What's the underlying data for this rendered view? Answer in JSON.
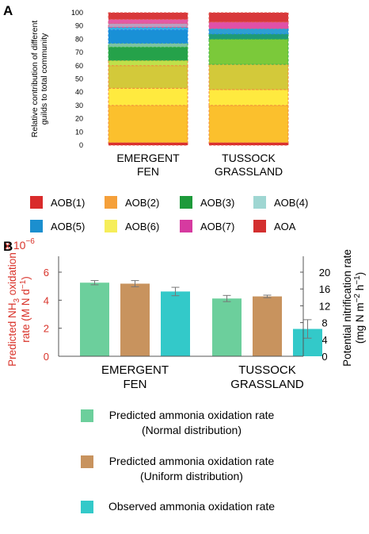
{
  "panels": {
    "a": "A",
    "b": "B"
  },
  "chart_data": [
    {
      "type": "bar",
      "stacked": true,
      "categories": [
        "EMERGENT FEN",
        "TUSSOCK GRASSLAND"
      ],
      "category_lines": [
        [
          "EMERGENT",
          "FEN"
        ],
        [
          "TUSSOCK",
          "GRASSLAND"
        ]
      ],
      "ylabel_lines": [
        "Relative contribution of different",
        "guilds to total community"
      ],
      "ylim": [
        0,
        100
      ],
      "yticks": [
        0,
        10,
        20,
        30,
        40,
        50,
        60,
        70,
        80,
        90,
        100
      ],
      "legend_position": "bottom",
      "legend": [
        {
          "label": "AOB(1)",
          "color": "#d92b2b"
        },
        {
          "label": "AOB(2)",
          "color": "#f5a03a"
        },
        {
          "label": "AOB(3)",
          "color": "#1d9a3a"
        },
        {
          "label": "AOB(4)",
          "color": "#9fd6d2"
        },
        {
          "label": "AOB(5)",
          "color": "#1b8fcf"
        },
        {
          "label": "AOB(6)",
          "color": "#f6ee5a"
        },
        {
          "label": "AOB(7)",
          "color": "#d63aa0"
        },
        {
          "label": "AOA",
          "color": "#d32f2f"
        }
      ],
      "stacks": [
        [
          {
            "from": 0,
            "to": 2,
            "color": "#d92b2b",
            "border": "#e05a50"
          },
          {
            "from": 2,
            "to": 30,
            "color": "#fbc02d",
            "border": "#f08a3a"
          },
          {
            "from": 30,
            "to": 43,
            "color": "#ffea3f",
            "border": "#f08a3a"
          },
          {
            "from": 43,
            "to": 60,
            "color": "#d3c93a",
            "border": "#f08a3a"
          },
          {
            "from": 60,
            "to": 64,
            "color": "#bfe04a",
            "border": "#f08a3a"
          },
          {
            "from": 64,
            "to": 74,
            "color": "#25a24a",
            "border": "#3cb44b"
          },
          {
            "from": 74,
            "to": 77,
            "color": "#7ec3a0",
            "border": "#3cb44b"
          },
          {
            "from": 77,
            "to": 87,
            "color": "#1990d6",
            "border": "#1e88e5"
          },
          {
            "from": 87,
            "to": 89,
            "color": "#36b0e0",
            "border": "#1e88e5"
          },
          {
            "from": 89,
            "to": 92,
            "color": "#b8a0c0",
            "border": "#e05a8a"
          },
          {
            "from": 92,
            "to": 95,
            "color": "#e35aa5",
            "border": "#e05a8a"
          },
          {
            "from": 95,
            "to": 100,
            "color": "#d8373a",
            "border": "#e05a50"
          }
        ],
        [
          {
            "from": 0,
            "to": 2,
            "color": "#d92b2b",
            "border": "#e05a50"
          },
          {
            "from": 2,
            "to": 30,
            "color": "#fbc02d",
            "border": "#f08a3a"
          },
          {
            "from": 30,
            "to": 42,
            "color": "#ffea3f",
            "border": "#f08a3a"
          },
          {
            "from": 42,
            "to": 61,
            "color": "#d3c93a",
            "border": "#f08a3a"
          },
          {
            "from": 61,
            "to": 80,
            "color": "#7bc93a",
            "border": "#3cb44b"
          },
          {
            "from": 80,
            "to": 84,
            "color": "#1e9a78",
            "border": "#3cb44b"
          },
          {
            "from": 84,
            "to": 88,
            "color": "#2c9fd4",
            "border": "#1e88e5"
          },
          {
            "from": 88,
            "to": 93,
            "color": "#e050a8",
            "border": "#e05a8a"
          },
          {
            "from": 93,
            "to": 100,
            "color": "#d8373a",
            "border": "#e05a50"
          }
        ]
      ]
    },
    {
      "type": "bar",
      "categories": [
        "EMERGENT FEN",
        "TUSSOCK GRASSLAND"
      ],
      "category_lines": [
        [
          "EMERGENT",
          "FEN"
        ],
        [
          "TUSSOCK",
          "GRASSLAND"
        ]
      ],
      "multiplier": "x 10",
      "multiplier_exp": "−6",
      "ylabel_left": {
        "pre": "Predicted NH",
        "sub": "3",
        "post": " oxidation",
        "line2": "rate (M N d",
        "sup": "−1",
        "end": ")"
      },
      "ylabel_right": {
        "line1": "Potential nitrification rate",
        "line2_pre": "(mg N m",
        "sup1": "−2",
        "mid": " h",
        "sup2": "−1",
        "end": ")"
      },
      "ylim_left": [
        0,
        6
      ],
      "yticks_left": [
        0,
        2,
        4,
        6
      ],
      "ylim_right": [
        0,
        20
      ],
      "yticks_right": [
        0,
        4,
        8,
        12,
        16,
        20
      ],
      "legend_position": "bottom",
      "series": [
        {
          "name_lines": [
            "Predicted ammonia oxidation rate",
            "(Normal distribution)"
          ],
          "color": "#6ccf9c",
          "axis": "left",
          "values": [
            5.25,
            4.12
          ],
          "errors": [
            0.15,
            0.22
          ]
        },
        {
          "name_lines": [
            "Predicted ammonia oxidation rate",
            "(Uniform distribution)"
          ],
          "color": "#c8935e",
          "axis": "left",
          "values": [
            5.18,
            4.27
          ],
          "errors": [
            0.22,
            0.09
          ]
        },
        {
          "name_lines": [
            "Observed ammonia oxidation rate"
          ],
          "color": "#33c9c9",
          "axis": "right",
          "values": [
            15.4,
            6.5
          ],
          "errors": [
            1.0,
            2.2
          ]
        }
      ]
    }
  ]
}
